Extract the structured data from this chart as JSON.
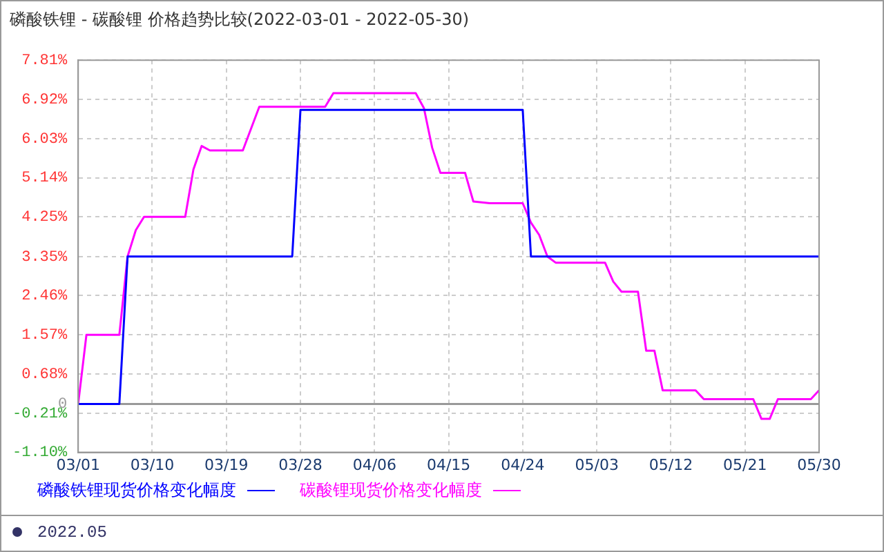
{
  "chart_data": {
    "type": "line",
    "title": "磷酸铁锂 - 碳酸锂 价格趋势比较(2022-03-01 - 2022-05-30)",
    "xlim": [
      "2022-03-01",
      "2022-05-30"
    ],
    "xticks": [
      {
        "value": "2022-03-01",
        "label": "03/01"
      },
      {
        "value": "2022-03-10",
        "label": "03/10"
      },
      {
        "value": "2022-03-19",
        "label": "03/19"
      },
      {
        "value": "2022-03-28",
        "label": "03/28"
      },
      {
        "value": "2022-04-06",
        "label": "04/06"
      },
      {
        "value": "2022-04-15",
        "label": "04/15"
      },
      {
        "value": "2022-04-24",
        "label": "04/24"
      },
      {
        "value": "2022-05-03",
        "label": "05/03"
      },
      {
        "value": "2022-05-12",
        "label": "05/12"
      },
      {
        "value": "2022-05-21",
        "label": "05/21"
      },
      {
        "value": "2022-05-30",
        "label": "05/30"
      }
    ],
    "ylim": [
      -1.1,
      7.81
    ],
    "yticks": [
      {
        "value": -1.1,
        "label": "-1.10%"
      },
      {
        "value": -0.21,
        "label": "-0.21%"
      },
      0,
      {
        "value": 0.68,
        "label": "0.68%"
      },
      {
        "value": 1.57,
        "label": "1.57%"
      },
      {
        "value": 2.46,
        "label": "2.46%"
      },
      {
        "value": 3.35,
        "label": "3.35%"
      },
      {
        "value": 4.25,
        "label": "4.25%"
      },
      {
        "value": 5.14,
        "label": "5.14%"
      },
      {
        "value": 6.03,
        "label": "6.03%"
      },
      {
        "value": 6.92,
        "label": "6.92%"
      },
      {
        "value": 7.81,
        "label": "7.81%"
      }
    ],
    "grid": true,
    "legend": "bottom",
    "marker": "none",
    "series": [
      {
        "name": "磷酸铁锂现货价格变化幅度",
        "color": "#0000ff",
        "x": [
          "2022-03-01",
          "2022-03-06",
          "2022-03-07",
          "2022-03-27",
          "2022-03-28",
          "2022-04-24",
          "2022-04-25",
          "2022-05-30"
        ],
        "values": [
          0,
          0,
          3.35,
          3.35,
          6.68,
          6.68,
          3.35,
          3.35
        ]
      },
      {
        "name": "碳酸锂现货价格变化幅度",
        "color": "#ff00ff",
        "x": [
          "2022-03-01",
          "2022-03-02",
          "2022-03-06",
          "2022-03-07",
          "2022-03-08",
          "2022-03-09",
          "2022-03-14",
          "2022-03-15",
          "2022-03-16",
          "2022-03-17",
          "2022-03-21",
          "2022-03-23",
          "2022-03-31",
          "2022-04-01",
          "2022-04-11",
          "2022-04-12",
          "2022-04-13",
          "2022-04-14",
          "2022-04-17",
          "2022-04-18",
          "2022-04-20",
          "2022-04-24",
          "2022-04-25",
          "2022-04-26",
          "2022-04-27",
          "2022-04-28",
          "2022-05-04",
          "2022-05-05",
          "2022-05-06",
          "2022-05-08",
          "2022-05-09",
          "2022-05-10",
          "2022-05-11",
          "2022-05-15",
          "2022-05-16",
          "2022-05-22",
          "2022-05-23",
          "2022-05-24",
          "2022-05-25",
          "2022-05-29",
          "2022-05-30"
        ],
        "values": [
          0,
          1.57,
          1.57,
          3.35,
          3.95,
          4.25,
          4.25,
          5.33,
          5.86,
          5.76,
          5.76,
          6.75,
          6.75,
          7.06,
          7.06,
          6.72,
          5.82,
          5.25,
          5.25,
          4.6,
          4.56,
          4.56,
          4.12,
          3.84,
          3.35,
          3.21,
          3.21,
          2.78,
          2.55,
          2.55,
          1.21,
          1.21,
          0.31,
          0.31,
          0.11,
          0.11,
          -0.34,
          -0.34,
          0.11,
          0.11,
          0.31
        ]
      }
    ],
    "annotations": [
      "2022.05"
    ]
  }
}
